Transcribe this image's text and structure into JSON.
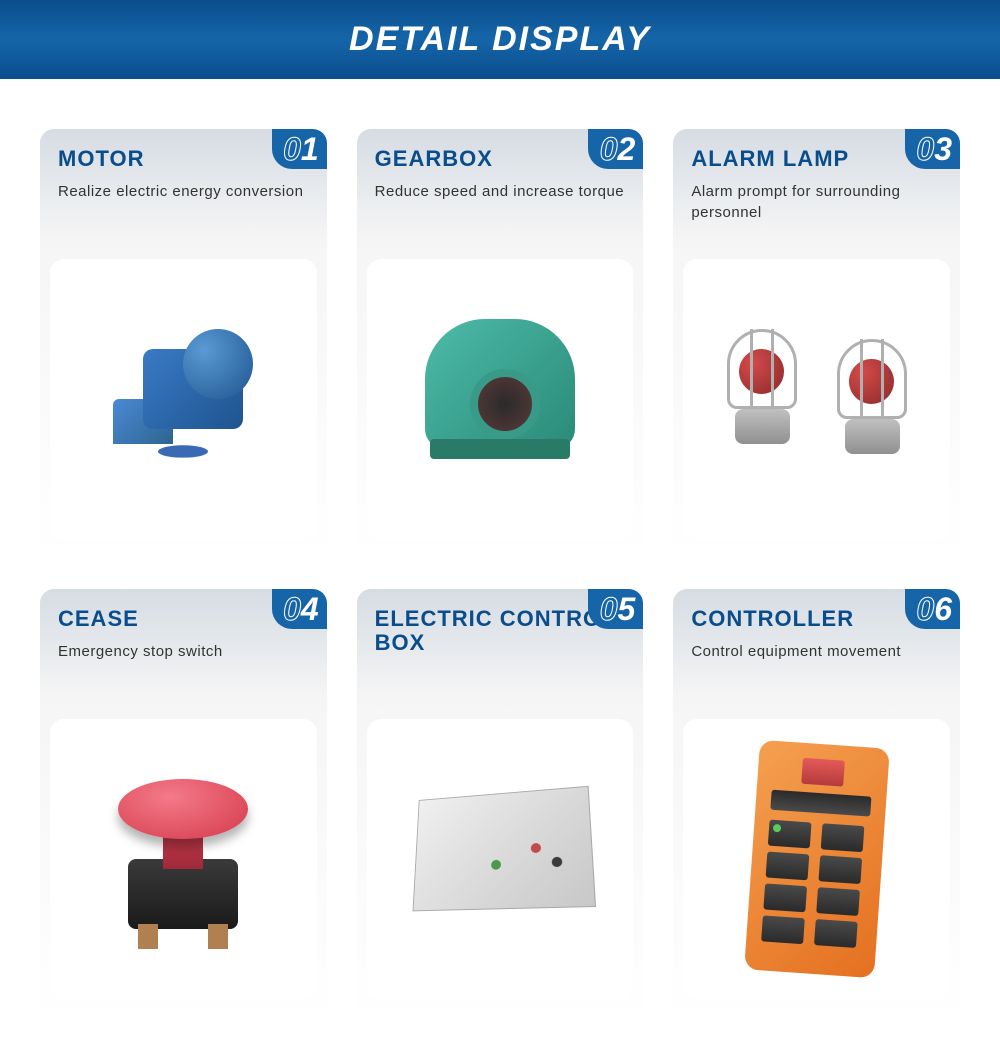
{
  "header": {
    "title": "DETAIL DISPLAY"
  },
  "colors": {
    "primary": "#0a4d8c",
    "accent": "#1565a8",
    "text": "#333333",
    "white": "#ffffff"
  },
  "cards": [
    {
      "number": "01",
      "title": "MOTOR",
      "description": "Realize electric energy conversion",
      "image_type": "motor",
      "image_colors": {
        "main": "#3a7ac4",
        "dark": "#1e5490"
      }
    },
    {
      "number": "02",
      "title": "GEARBOX",
      "description": "Reduce speed and increase torque",
      "image_type": "gearbox",
      "image_colors": {
        "main": "#4dbba8",
        "dark": "#2a8a78",
        "bore": "#3a3a3a"
      }
    },
    {
      "number": "03",
      "title": "ALARM LAMP",
      "description": "Alarm prompt for surrounding personnel",
      "image_type": "alarm_lamp",
      "image_colors": {
        "cage": "#b0b0b0",
        "bulb": "#c43a3a",
        "base": "#a0a0a0"
      }
    },
    {
      "number": "04",
      "title": "CEASE",
      "description": "Emergency stop switch",
      "image_type": "cease",
      "image_colors": {
        "button": "#e44a5a",
        "base": "#2a2a2a",
        "terminal": "#b08050"
      }
    },
    {
      "number": "05",
      "title": "ELECTRIC CONTROL BOX",
      "description": "",
      "image_type": "control_box",
      "image_colors": {
        "box": "#d8d8d8",
        "green": "#4a9a4a",
        "red": "#c44a4a"
      }
    },
    {
      "number": "06",
      "title": "CONTROLLER",
      "description": "Control equipment movement",
      "image_type": "controller",
      "image_colors": {
        "body": "#ea8530",
        "button": "#3a3a3a",
        "stop": "#d44a4a"
      }
    }
  ]
}
